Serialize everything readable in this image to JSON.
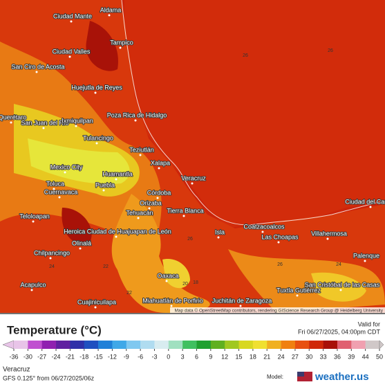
{
  "map": {
    "place_labels": [
      "Aldama",
      "Ciudad Mante",
      "Tampico",
      "Ciudad Valles",
      "San Ciro de Acosta",
      "Huejutla de Reyes",
      "Poza Rica de Hidalgo",
      "Querétaro",
      "San Juan del Río",
      "Ixmiquilpan",
      "Tulancingo",
      "Teziutlán",
      "Mexico City",
      "Huamantla",
      "Xalapa",
      "Toluca",
      "Cuernavaca",
      "Puebla",
      "Veracruz",
      "Córdoba",
      "Orizaba",
      "Tehuacán",
      "Tierra Blanca",
      "Teloloapan",
      "Heroica Ciudad de Huajuapan de León",
      "Isla",
      "Coatzacoalcos",
      "Las Choapas",
      "Villahermosa",
      "Ciudad del Carmen",
      "Olinalá",
      "Chilpancingo",
      "Palenque",
      "Acapulco",
      "Oaxaca",
      "San Cristóbal de las Casas",
      "Tuxtla Gutiérrez",
      "Miahuatlán de Porfirio",
      "Juchitán de Zaragoza",
      "Cuajinicuilapa"
    ],
    "contour_labels": [
      26,
      26,
      26,
      26,
      24,
      24,
      22,
      22,
      20,
      18
    ],
    "attribution": "Map data © OpenStreetMap contributors, rendering GIScience Research Group @ Heidelberg University"
  },
  "legend": {
    "title": "Temperature (°C)",
    "valid_label": "Valid for",
    "valid_time": "Fri 06/27/2025, 04:00pm CDT",
    "ticks": [
      -36,
      -30,
      -27,
      -24,
      -21,
      -18,
      -15,
      -12,
      -9,
      -6,
      -3,
      0,
      3,
      6,
      9,
      12,
      15,
      18,
      21,
      24,
      27,
      30,
      33,
      36,
      39,
      44,
      50
    ],
    "colors": [
      "#e8c4e8",
      "#c050d0",
      "#9020b0",
      "#6020a0",
      "#3030a8",
      "#2050c0",
      "#2080d8",
      "#40a8e8",
      "#80c8f0",
      "#b0dcf0",
      "#d8ecf0",
      "#a0e0c0",
      "#40c060",
      "#20a030",
      "#60b020",
      "#a0c820",
      "#d8d820",
      "#f0e030",
      "#f0b020",
      "#f08010",
      "#e85010",
      "#d02808",
      "#a81008",
      "#e06070",
      "#f0a0b0",
      "#d0c8c8"
    ]
  },
  "footer": {
    "location": "Veracruz",
    "model_info": "GFS 0.125° from 06/27/2025/06z",
    "model_label": "Model:",
    "brand": "weather.us"
  }
}
